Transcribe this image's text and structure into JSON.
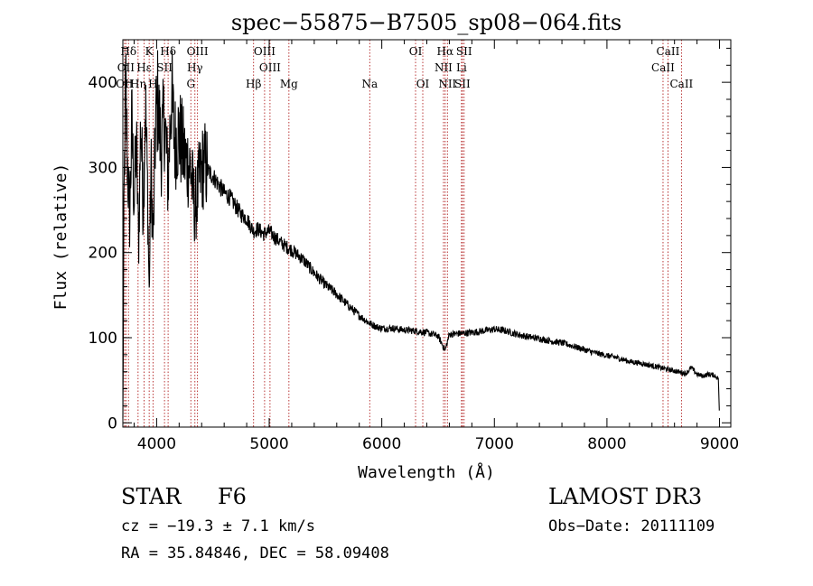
{
  "chart_data": {
    "type": "line",
    "title": "spec−55875−B7505_sp08−064.fits",
    "xlabel": "Wavelength (Å)",
    "ylabel": "Flux (relative)",
    "xlim": [
      3700,
      9100
    ],
    "ylim": [
      -5,
      450
    ],
    "xticks": [
      4000,
      5000,
      6000,
      7000,
      8000,
      9000
    ],
    "xtick_labels": [
      "4000",
      "5000",
      "6000",
      "7000",
      "8000",
      "9000"
    ],
    "yticks": [
      0,
      100,
      200,
      300,
      400
    ],
    "ytick_labels": [
      "0",
      "100",
      "200",
      "300",
      "400"
    ],
    "grid": false,
    "spectrum_anchor_points": {
      "wavelength": [
        3700,
        3710,
        3725,
        3740,
        3760,
        3780,
        3800,
        3820,
        3840,
        3860,
        3880,
        3900,
        3920,
        3934,
        3950,
        3970,
        3990,
        4010,
        4040,
        4070,
        4102,
        4130,
        4160,
        4200,
        4250,
        4300,
        4340,
        4380,
        4420,
        4460,
        4500,
        4550,
        4600,
        4650,
        4700,
        4750,
        4800,
        4861,
        4900,
        4950,
        5000,
        5050,
        5100,
        5150,
        5200,
        5300,
        5400,
        5500,
        5600,
        5700,
        5800,
        5890,
        5950,
        6000,
        6100,
        6200,
        6300,
        6400,
        6500,
        6563,
        6600,
        6700,
        6800,
        6900,
        7000,
        7100,
        7200,
        7300,
        7400,
        7500,
        7600,
        7700,
        7800,
        7900,
        8000,
        8100,
        8200,
        8300,
        8400,
        8500,
        8600,
        8700,
        8750,
        8780,
        8800,
        8850,
        8900,
        8950,
        8990,
        9000
      ],
      "flux": [
        5,
        250,
        400,
        310,
        240,
        350,
        260,
        330,
        210,
        360,
        250,
        380,
        270,
        150,
        300,
        210,
        350,
        380,
        320,
        360,
        280,
        390,
        330,
        340,
        310,
        300,
        250,
        285,
        305,
        295,
        290,
        280,
        270,
        265,
        255,
        245,
        240,
        225,
        228,
        222,
        225,
        218,
        212,
        207,
        203,
        192,
        176,
        162,
        151,
        138,
        126,
        117,
        113,
        111,
        111,
        109,
        108,
        106,
        102,
        85,
        104,
        105,
        106,
        108,
        110,
        108,
        104,
        101,
        99,
        96,
        94,
        90,
        86,
        82,
        79,
        76,
        72,
        70,
        67,
        64,
        61,
        58,
        65,
        60,
        57,
        55,
        57,
        56,
        52,
        5
      ]
    },
    "spectral_lines": [
      {
        "label": "Hδ",
        "wavelength": 3750,
        "row": 0
      },
      {
        "label": "K",
        "wavelength": 3934,
        "row": 0
      },
      {
        "label": "Hδ",
        "wavelength": 4102,
        "row": 0
      },
      {
        "label": "OIII",
        "wavelength": 4363,
        "row": 0
      },
      {
        "label": "OIII",
        "wavelength": 4959,
        "row": 0
      },
      {
        "label": "OI",
        "wavelength": 6300,
        "row": 0
      },
      {
        "label": "Hα",
        "wavelength": 6563,
        "row": 0
      },
      {
        "label": "SII",
        "wavelength": 6731,
        "row": 0
      },
      {
        "label": "CaII",
        "wavelength": 8542,
        "row": 0
      },
      {
        "label": "OII",
        "wavelength": 3727,
        "row": 1
      },
      {
        "label": "Hε",
        "wavelength": 3889,
        "row": 1
      },
      {
        "label": "SII",
        "wavelength": 4070,
        "row": 1
      },
      {
        "label": "Hγ",
        "wavelength": 4340,
        "row": 1
      },
      {
        "label": "OIII",
        "wavelength": 5007,
        "row": 1
      },
      {
        "label": "NII",
        "wavelength": 6548,
        "row": 1
      },
      {
        "label": "Li",
        "wavelength": 6708,
        "row": 1
      },
      {
        "label": "CaII",
        "wavelength": 8498,
        "row": 1
      },
      {
        "label": "OII",
        "wavelength": 3715,
        "row": 2
      },
      {
        "label": "Hη",
        "wavelength": 3835,
        "row": 2
      },
      {
        "label": "H",
        "wavelength": 3968,
        "row": 2
      },
      {
        "label": "G",
        "wavelength": 4304,
        "row": 2
      },
      {
        "label": "Hβ",
        "wavelength": 4861,
        "row": 2
      },
      {
        "label": "Mg",
        "wavelength": 5175,
        "row": 2
      },
      {
        "label": "Na",
        "wavelength": 5893,
        "row": 2
      },
      {
        "label": "OI",
        "wavelength": 6364,
        "row": 2
      },
      {
        "label": "NII",
        "wavelength": 6583,
        "row": 2
      },
      {
        "label": "SII",
        "wavelength": 6716,
        "row": 2
      },
      {
        "label": "CaII",
        "wavelength": 8662,
        "row": 2
      }
    ]
  },
  "info": {
    "object_type": "STAR",
    "subclass": "F6",
    "survey": "LAMOST DR3",
    "redshift": "cz = −19.3 ± 7.1 km/s",
    "obs_date": "Obs−Date: 20111109",
    "coords": "RA =  35.84846, DEC =  58.09408"
  },
  "colors": {
    "spectrum": "#000000",
    "lines": "#b22222",
    "axes": "#000000",
    "background": "#ffffff"
  }
}
